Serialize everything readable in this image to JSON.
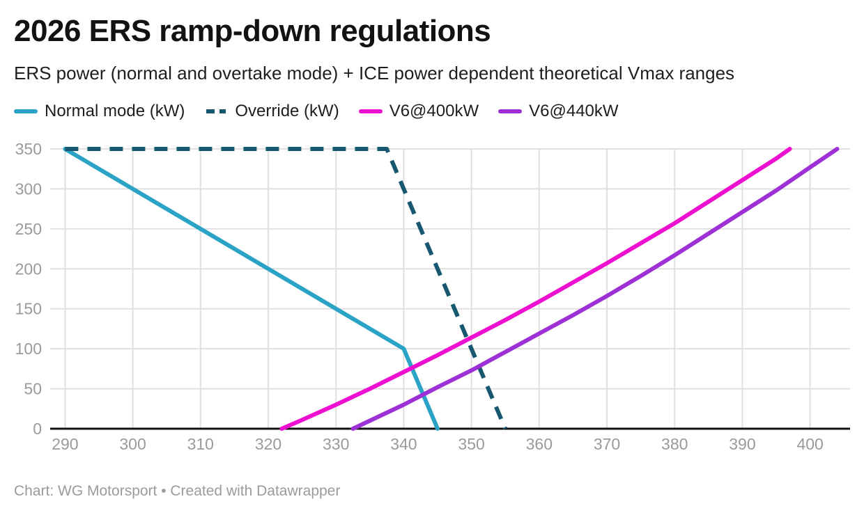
{
  "footer": {
    "text": "Chart: WG Motorsport • Created with Datawrapper"
  },
  "colors": {
    "background": "#ffffff",
    "grid": "#e0e0e0",
    "axis": "#121212",
    "tick_label": "#9a9a9a",
    "normal_mode": "#2ba3c6",
    "override": "#175870",
    "v6_400": "#ee10d0",
    "v6_440": "#9e31d5"
  },
  "chart_data": {
    "type": "line",
    "title": "2026 ERS ramp-down regulations",
    "subtitle": "ERS power (normal and overtake mode) + ICE power dependent theoretical Vmax ranges",
    "xlabel": "",
    "ylabel": "",
    "x_domain": [
      287.8,
      405.9
    ],
    "ylim": [
      0,
      350
    ],
    "x_ticks": [
      290,
      300,
      310,
      320,
      330,
      340,
      350,
      360,
      370,
      380,
      390,
      400
    ],
    "y_ticks": [
      0,
      50,
      100,
      150,
      200,
      250,
      300,
      350
    ],
    "grid": true,
    "legend_position": "top",
    "series": [
      {
        "name": "Normal mode (kW)",
        "color": "#2ba3c6",
        "dash": false,
        "points": [
          [
            290,
            350
          ],
          [
            340,
            100
          ],
          [
            345,
            0
          ]
        ]
      },
      {
        "name": "Override (kW)",
        "color": "#175870",
        "dash": true,
        "points": [
          [
            290,
            350
          ],
          [
            337.5,
            350
          ],
          [
            355,
            0
          ]
        ]
      },
      {
        "name": "V6@400kW",
        "color": "#ee10d0",
        "dash": false,
        "points": [
          [
            322,
            0
          ],
          [
            325,
            11
          ],
          [
            330,
            30
          ],
          [
            335,
            50
          ],
          [
            340,
            71
          ],
          [
            345,
            92
          ],
          [
            350,
            114
          ],
          [
            355,
            136
          ],
          [
            360,
            159
          ],
          [
            365,
            183
          ],
          [
            370,
            207
          ],
          [
            375,
            232
          ],
          [
            380,
            257
          ],
          [
            385,
            284
          ],
          [
            390,
            311
          ],
          [
            395,
            338
          ],
          [
            397,
            350
          ]
        ]
      },
      {
        "name": "V6@440kW",
        "color": "#9e31d5",
        "dash": false,
        "points": [
          [
            332.5,
            0
          ],
          [
            335,
            10
          ],
          [
            340,
            30
          ],
          [
            345,
            52
          ],
          [
            350,
            73
          ],
          [
            355,
            96
          ],
          [
            360,
            119
          ],
          [
            365,
            142
          ],
          [
            370,
            166
          ],
          [
            375,
            191
          ],
          [
            380,
            217
          ],
          [
            385,
            244
          ],
          [
            390,
            271
          ],
          [
            395,
            298
          ],
          [
            400,
            327
          ],
          [
            404,
            350
          ]
        ]
      }
    ]
  }
}
